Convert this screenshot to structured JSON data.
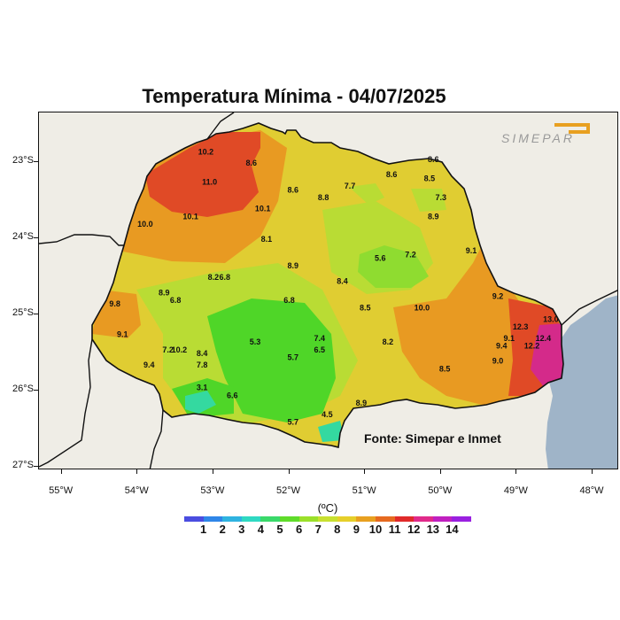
{
  "title": "Temperatura Mínima - 04/07/2025",
  "source": "Fonte: Simepar e Inmet",
  "logo_text": "SIMEPAR",
  "unit": "(ºC)",
  "latitudes": [
    "23°S",
    "24°S",
    "25°S",
    "26°S",
    "27°S"
  ],
  "longitudes": [
    "55°W",
    "54°W",
    "53°W",
    "52°W",
    "51°W",
    "50°W",
    "49°W",
    "48°W"
  ],
  "colorbar": {
    "labels": [
      "1",
      "2",
      "3",
      "4",
      "5",
      "6",
      "7",
      "8",
      "9",
      "10",
      "11",
      "12",
      "13",
      "14"
    ],
    "colors": [
      "#4a4de0",
      "#2f86e8",
      "#2fb3e0",
      "#2fd9c2",
      "#3ad96a",
      "#5fdc2a",
      "#9be02a",
      "#c8e030",
      "#e6cf2a",
      "#e8a020",
      "#e66a20",
      "#e02a2a",
      "#e02a8a",
      "#c020c0",
      "#9a20e0"
    ]
  },
  "colors": {
    "ocean": "#9fb4c8",
    "land_background": "#efede6",
    "state_outline": "#111111"
  },
  "station_values": [
    {
      "lon": -53.1,
      "lat": -22.9,
      "v": "10.2"
    },
    {
      "lon": -52.5,
      "lat": -23.05,
      "v": "8.6"
    },
    {
      "lon": -53.05,
      "lat": -23.3,
      "v": "11.0"
    },
    {
      "lon": -52.35,
      "lat": -23.65,
      "v": "10.1"
    },
    {
      "lon": -53.3,
      "lat": -23.75,
      "v": "10.1"
    },
    {
      "lon": -53.9,
      "lat": -23.85,
      "v": "10.0"
    },
    {
      "lon": -52.3,
      "lat": -24.05,
      "v": "8.1"
    },
    {
      "lon": -51.95,
      "lat": -23.4,
      "v": "8.6"
    },
    {
      "lon": -51.55,
      "lat": -23.5,
      "v": "8.8"
    },
    {
      "lon": -51.2,
      "lat": -23.35,
      "v": "7.7"
    },
    {
      "lon": -50.65,
      "lat": -23.2,
      "v": "8.6"
    },
    {
      "lon": -50.1,
      "lat": -23.0,
      "v": "8.6"
    },
    {
      "lon": -50.15,
      "lat": -23.25,
      "v": "8.5"
    },
    {
      "lon": -50.0,
      "lat": -23.5,
      "v": "7.3"
    },
    {
      "lon": -50.1,
      "lat": -23.75,
      "v": "8.9"
    },
    {
      "lon": -49.6,
      "lat": -24.2,
      "v": "9.1"
    },
    {
      "lon": -50.4,
      "lat": -24.25,
      "v": "7.2"
    },
    {
      "lon": -50.8,
      "lat": -24.3,
      "v": "5.6"
    },
    {
      "lon": -51.95,
      "lat": -24.4,
      "v": "8.9"
    },
    {
      "lon": -53.0,
      "lat": -24.55,
      "v": "8.2"
    },
    {
      "lon": -52.85,
      "lat": -24.55,
      "v": "6.8"
    },
    {
      "lon": -51.3,
      "lat": -24.6,
      "v": "8.4"
    },
    {
      "lon": -53.65,
      "lat": -24.75,
      "v": "8.9"
    },
    {
      "lon": -53.5,
      "lat": -24.85,
      "v": "6.8"
    },
    {
      "lon": -52.0,
      "lat": -24.85,
      "v": "6.8"
    },
    {
      "lon": -54.3,
      "lat": -24.9,
      "v": "9.8"
    },
    {
      "lon": -51.0,
      "lat": -24.95,
      "v": "8.5"
    },
    {
      "lon": -50.25,
      "lat": -24.95,
      "v": "10.0"
    },
    {
      "lon": -49.25,
      "lat": -24.8,
      "v": "9.2"
    },
    {
      "lon": -54.2,
      "lat": -25.3,
      "v": "9.1"
    },
    {
      "lon": -48.95,
      "lat": -25.2,
      "v": "12.3"
    },
    {
      "lon": -48.55,
      "lat": -25.1,
      "v": "13.0"
    },
    {
      "lon": -48.65,
      "lat": -25.35,
      "v": "12.4"
    },
    {
      "lon": -48.8,
      "lat": -25.45,
      "v": "12.2"
    },
    {
      "lon": -49.1,
      "lat": -25.35,
      "v": "9.1"
    },
    {
      "lon": -49.2,
      "lat": -25.45,
      "v": "9.4"
    },
    {
      "lon": -49.25,
      "lat": -25.65,
      "v": "9.0"
    },
    {
      "lon": -53.6,
      "lat": -25.5,
      "v": "7.2"
    },
    {
      "lon": -53.45,
      "lat": -25.5,
      "v": "10.2"
    },
    {
      "lon": -53.15,
      "lat": -25.55,
      "v": "8.4"
    },
    {
      "lon": -53.85,
      "lat": -25.7,
      "v": "9.4"
    },
    {
      "lon": -53.15,
      "lat": -25.7,
      "v": "7.8"
    },
    {
      "lon": -52.45,
      "lat": -25.4,
      "v": "5.3"
    },
    {
      "lon": -51.95,
      "lat": -25.6,
      "v": "5.7"
    },
    {
      "lon": -51.6,
      "lat": -25.35,
      "v": "7.4"
    },
    {
      "lon": -51.6,
      "lat": -25.5,
      "v": "6.5"
    },
    {
      "lon": -50.7,
      "lat": -25.4,
      "v": "8.2"
    },
    {
      "lon": -49.95,
      "lat": -25.75,
      "v": "8.5"
    },
    {
      "lon": -53.15,
      "lat": -26.0,
      "v": "3.1"
    },
    {
      "lon": -52.75,
      "lat": -26.1,
      "v": "6.6"
    },
    {
      "lon": -51.05,
      "lat": -26.2,
      "v": "8.9"
    },
    {
      "lon": -51.5,
      "lat": -26.35,
      "v": "4.5"
    },
    {
      "lon": -51.95,
      "lat": -26.45,
      "v": "5.7"
    }
  ]
}
